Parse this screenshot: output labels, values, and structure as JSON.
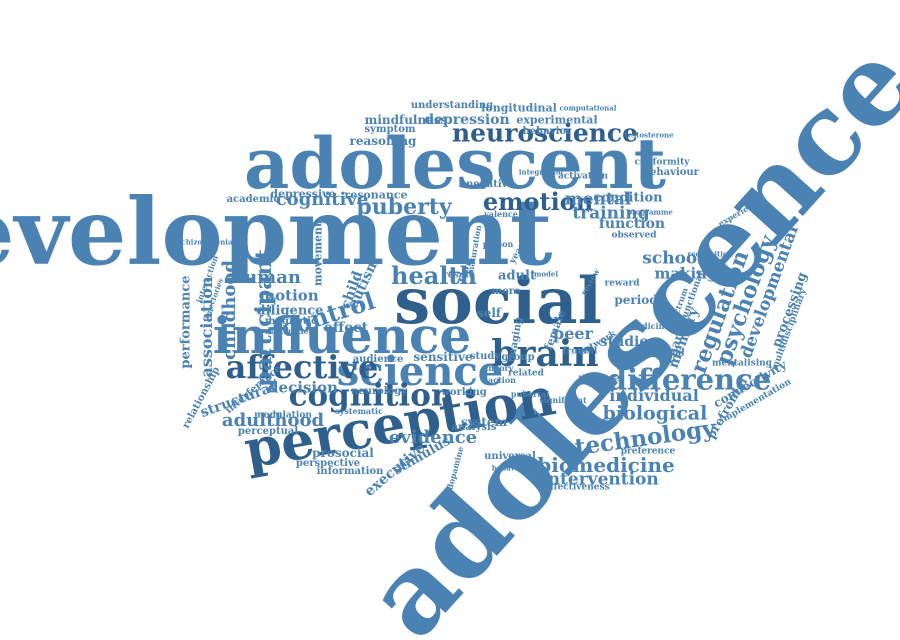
{
  "colors": {
    "primary": "#4a82b4",
    "dark": "#2f5f8c",
    "background": "#ffffff"
  },
  "words": [
    {
      "id": "development",
      "text": "development"
    },
    {
      "id": "adolescence",
      "text": "adolescence"
    },
    {
      "id": "adolescent",
      "text": "adolescent"
    },
    {
      "id": "social",
      "text": "social"
    },
    {
      "id": "influence",
      "text": "influence"
    },
    {
      "id": "perception",
      "text": "perception"
    },
    {
      "id": "science",
      "text": "science"
    },
    {
      "id": "brain",
      "text": "brain"
    },
    {
      "id": "emotion",
      "text": "emotion"
    },
    {
      "id": "neuroscience",
      "text": "neuroscience"
    },
    {
      "id": "cognition",
      "text": "cognition"
    },
    {
      "id": "cognitive",
      "text": "cognitive"
    },
    {
      "id": "affective",
      "text": "affective"
    },
    {
      "id": "control",
      "text": "control"
    },
    {
      "id": "puberty",
      "text": "puberty"
    },
    {
      "id": "health",
      "text": "health"
    },
    {
      "id": "mental",
      "text": "mental"
    },
    {
      "id": "training",
      "text": "training"
    },
    {
      "id": "difference",
      "text": "difference"
    },
    {
      "id": "biological",
      "text": "biological"
    },
    {
      "id": "technology",
      "text": "technology"
    },
    {
      "id": "individual",
      "text": "individual"
    },
    {
      "id": "biomedicine",
      "text": "biomedicine"
    },
    {
      "id": "intervention",
      "text": "intervention"
    },
    {
      "id": "evidence",
      "text": "evidence"
    },
    {
      "id": "human",
      "text": "human"
    },
    {
      "id": "motion",
      "text": "motion"
    },
    {
      "id": "effect",
      "text": "effect"
    },
    {
      "id": "decision",
      "text": "decision"
    },
    {
      "id": "adulthood",
      "text": "adulthood"
    },
    {
      "id": "structural",
      "text": "structural"
    },
    {
      "id": "participant",
      "text": "participant"
    },
    {
      "id": "childhood",
      "text": "childhood"
    },
    {
      "id": "association",
      "text": "association"
    },
    {
      "id": "performance",
      "text": "performance"
    },
    {
      "id": "relationship",
      "text": "relationship"
    },
    {
      "id": "regulation",
      "text": "regulation"
    },
    {
      "id": "psychology",
      "text": "psychology"
    },
    {
      "id": "developmental",
      "text": "developmental"
    },
    {
      "id": "processing",
      "text": "processing"
    },
    {
      "id": "memory",
      "text": "memory"
    },
    {
      "id": "connectivity",
      "text": "connectivity"
    },
    {
      "id": "prefrontal",
      "text": "prefrontal"
    },
    {
      "id": "implementation",
      "text": "implementation"
    },
    {
      "id": "multidisciplinary",
      "text": "multidisciplinary"
    },
    {
      "id": "school",
      "text": "school"
    },
    {
      "id": "making",
      "text": "making"
    },
    {
      "id": "function",
      "text": "function"
    },
    {
      "id": "condition",
      "text": "condition"
    },
    {
      "id": "studies",
      "text": "studies"
    },
    {
      "id": "period",
      "text": "period"
    },
    {
      "id": "change",
      "text": "change"
    },
    {
      "id": "peer",
      "text": "peer"
    },
    {
      "id": "adult",
      "text": "adult"
    },
    {
      "id": "self",
      "text": "self"
    },
    {
      "id": "risk",
      "text": "risk"
    },
    {
      "id": "more",
      "text": "more"
    },
    {
      "id": "female",
      "text": "female"
    },
    {
      "id": "sensitive",
      "text": "sensitive"
    },
    {
      "id": "study",
      "text": "study"
    },
    {
      "id": "group",
      "text": "group"
    },
    {
      "id": "audience",
      "text": "audience"
    },
    {
      "id": "neurology",
      "text": "neurology"
    },
    {
      "id": "working",
      "text": "working"
    },
    {
      "id": "system",
      "text": "system"
    },
    {
      "id": "analysis",
      "text": "analysis"
    },
    {
      "id": "prosocial",
      "text": "prosocial"
    },
    {
      "id": "perspective",
      "text": "perspective"
    },
    {
      "id": "information",
      "text": "information"
    },
    {
      "id": "executive",
      "text": "executive"
    },
    {
      "id": "stimulus",
      "text": "stimulus"
    },
    {
      "id": "universal",
      "text": "universal"
    },
    {
      "id": "effectiveness",
      "text": "effectiveness"
    },
    {
      "id": "preference",
      "text": "preference"
    },
    {
      "id": "depressive",
      "text": "depressive"
    },
    {
      "id": "resonance",
      "text": "resonance"
    },
    {
      "id": "academic",
      "text": "academic"
    },
    {
      "id": "symptom",
      "text": "symptom"
    },
    {
      "id": "reasoning",
      "text": "reasoning"
    },
    {
      "id": "mindfulness",
      "text": "mindfulness"
    },
    {
      "id": "depression",
      "text": "depression"
    },
    {
      "id": "understanding",
      "text": "understanding"
    },
    {
      "id": "longitudinal",
      "text": "longitudinal"
    },
    {
      "id": "experimental",
      "text": "experimental"
    },
    {
      "id": "behavior",
      "text": "behavior"
    },
    {
      "id": "computational",
      "text": "computational"
    },
    {
      "id": "testosterone",
      "text": "testosterone"
    },
    {
      "id": "conformity",
      "text": "conformity"
    },
    {
      "id": "behaviour",
      "text": "behaviour"
    },
    {
      "id": "negative",
      "text": "negative"
    },
    {
      "id": "activation",
      "text": "activation"
    },
    {
      "id": "integration",
      "text": "integration"
    },
    {
      "id": "valence",
      "text": "valence"
    },
    {
      "id": "observed",
      "text": "observed"
    },
    {
      "id": "programme",
      "text": "programme"
    },
    {
      "id": "experience",
      "text": "experience"
    },
    {
      "id": "recognition",
      "text": "recognition"
    },
    {
      "id": "reward",
      "text": "reward"
    },
    {
      "id": "functional",
      "text": "functional"
    },
    {
      "id": "relational",
      "text": "relational"
    },
    {
      "id": "mentalising",
      "text": "mentalising"
    },
    {
      "id": "frontal",
      "text": "frontal"
    },
    {
      "id": "thickness",
      "text": "thickness"
    },
    {
      "id": "spectrum",
      "text": "spectrum"
    },
    {
      "id": "autism",
      "text": "autism"
    },
    {
      "id": "child",
      "text": "child"
    },
    {
      "id": "diligence",
      "text": "diligence"
    },
    {
      "id": "magnetic",
      "text": "magnetic"
    },
    {
      "id": "interference",
      "text": "interference"
    },
    {
      "id": "modulation",
      "text": "modulation"
    },
    {
      "id": "perceptual",
      "text": "perceptual"
    },
    {
      "id": "movement",
      "text": "movement"
    },
    {
      "id": "schizophrenia",
      "text": "schizophrenia"
    },
    {
      "id": "interaction",
      "text": "interaction"
    },
    {
      "id": "systematic",
      "text": "systematic"
    },
    {
      "id": "difficulties",
      "text": "difficulties"
    },
    {
      "id": "trajectories",
      "text": "trajectories"
    },
    {
      "id": "related",
      "text": "related"
    },
    {
      "id": "pubertal",
      "text": "pubertal"
    },
    {
      "id": "network",
      "text": "network"
    },
    {
      "id": "imaging",
      "text": "imaging"
    },
    {
      "id": "year",
      "text": "year"
    },
    {
      "id": "theory",
      "text": "theory"
    },
    {
      "id": "result",
      "text": "result"
    },
    {
      "id": "action",
      "text": "action"
    },
    {
      "id": "review",
      "text": "review"
    },
    {
      "id": "model",
      "text": "model"
    },
    {
      "id": "person",
      "text": "person"
    },
    {
      "id": "emotional",
      "text": "emotional"
    },
    {
      "id": "maturation",
      "text": "maturation"
    },
    {
      "id": "behavioural",
      "text": "behavioural"
    },
    {
      "id": "dopamine",
      "text": "dopamine"
    },
    {
      "id": "significant",
      "text": "significant"
    },
    {
      "id": "medicine",
      "text": "medicine"
    }
  ]
}
